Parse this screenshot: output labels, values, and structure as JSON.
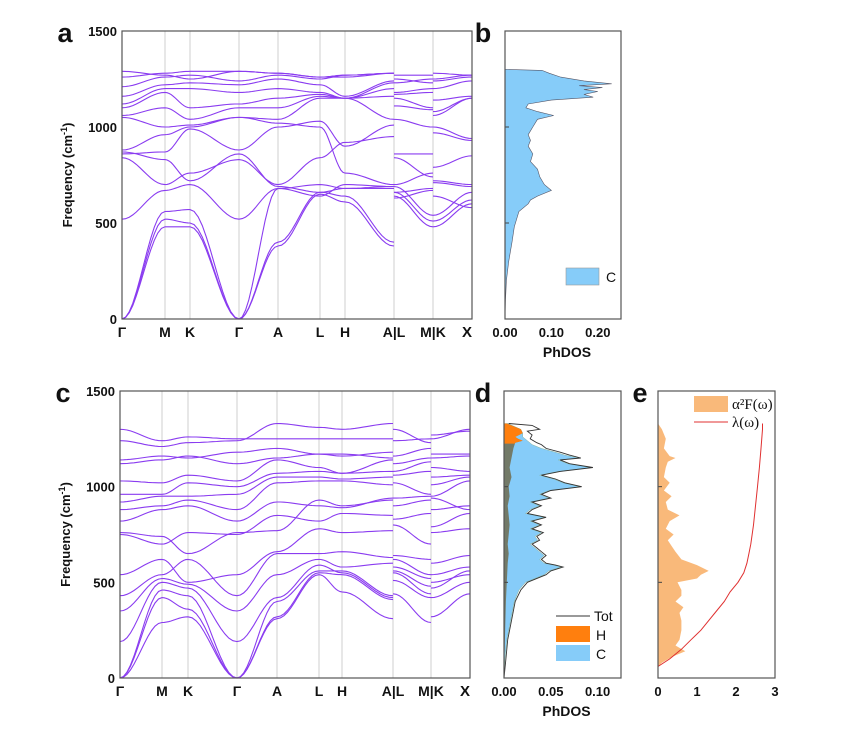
{
  "band_color": "#8a3cf0",
  "chart_data": [
    {
      "panel": "a",
      "type": "line",
      "ylabel": "Frequency (cm",
      "ylabel_sup": "-1",
      "ylabel_end": ")",
      "ylim": [
        0,
        1500
      ],
      "yticks": [
        "0",
        "500",
        "1000",
        "1500"
      ],
      "xticks": [
        "Γ",
        "M",
        "K",
        "Γ",
        "A",
        "L",
        "H",
        "A|L",
        "M|K",
        "X"
      ],
      "kpath": [
        "Γ",
        "M",
        "K",
        "Γ",
        "A",
        "L",
        "H",
        "A",
        "L",
        "M",
        "K",
        "X"
      ],
      "grid": "vertical lines at high-symmetry points",
      "bands": [
        [
          0,
          480,
          480,
          0,
          380,
          650,
          610,
          380,
          640,
          480,
          480,
          600
        ],
        [
          0,
          520,
          500,
          0,
          400,
          660,
          640,
          400,
          660,
          510,
          510,
          620
        ],
        [
          0,
          560,
          570,
          0,
          680,
          700,
          680,
          680,
          690,
          540,
          540,
          660
        ],
        [
          520,
          670,
          700,
          520,
          680,
          640,
          700,
          690,
          630,
          670,
          710,
          690
        ],
        [
          840,
          700,
          760,
          830,
          700,
          840,
          920,
          950,
          840,
          740,
          790,
          850
        ],
        [
          860,
          870,
          990,
          880,
          1000,
          1030,
          900,
          1010,
          860,
          860,
          970,
          930
        ],
        [
          880,
          960,
          1000,
          1050,
          1020,
          1000,
          760,
          700,
          700,
          760,
          720,
          700
        ],
        [
          870,
          830,
          720,
          860,
          690,
          660,
          680,
          690,
          660,
          680,
          640,
          580
        ],
        [
          1050,
          1000,
          1010,
          1050,
          1040,
          1150,
          1150,
          1040,
          1040,
          1000,
          1000,
          940
        ],
        [
          1060,
          1100,
          1040,
          1100,
          1100,
          1160,
          1150,
          1160,
          1110,
          1090,
          1060,
          1150
        ],
        [
          1100,
          1180,
          1100,
          1120,
          1150,
          1170,
          1150,
          1200,
          1150,
          1100,
          1080,
          1150
        ],
        [
          1120,
          1200,
          1200,
          1180,
          1200,
          1180,
          1150,
          1230,
          1170,
          1180,
          1140,
          1160
        ],
        [
          1160,
          1220,
          1230,
          1220,
          1250,
          1220,
          1160,
          1240,
          1180,
          1200,
          1200,
          1240
        ],
        [
          1210,
          1260,
          1270,
          1240,
          1270,
          1250,
          1270,
          1280,
          1250,
          1230,
          1240,
          1260
        ],
        [
          1260,
          1280,
          1290,
          1290,
          1280,
          1260,
          1260,
          1280,
          1270,
          1270,
          1280,
          1270
        ],
        [
          1290,
          1270,
          1250,
          1290,
          1280,
          1260,
          1270,
          1280,
          1230,
          1250,
          1250,
          1270
        ]
      ]
    },
    {
      "panel": "b",
      "type": "area",
      "xlabel": "PhDOS",
      "xlim": [
        0,
        0.25
      ],
      "ylim": [
        0,
        1500
      ],
      "xticks": [
        "0.00",
        "0.10",
        "0.20"
      ],
      "xtick_values": [
        0,
        0.1,
        0.2
      ],
      "legend": "bottom-right",
      "series": [
        {
          "name": "C",
          "color": "#86ccf9",
          "freq": [
            1300,
            1295,
            1280,
            1260,
            1240,
            1225,
            1215,
            1205,
            1195,
            1185,
            1170,
            1155,
            1140,
            1120,
            1100,
            1080,
            1060,
            1040,
            1000,
            960,
            930,
            900,
            860,
            820,
            780,
            740,
            700,
            670,
            640,
            620,
            600,
            560,
            520,
            480,
            400,
            300,
            200,
            100,
            0
          ],
          "dos": [
            0,
            0.08,
            0.095,
            0.12,
            0.17,
            0.23,
            0.16,
            0.21,
            0.17,
            0.2,
            0.17,
            0.19,
            0.1,
            0.05,
            0.045,
            0.07,
            0.105,
            0.07,
            0.06,
            0.05,
            0.055,
            0.05,
            0.06,
            0.055,
            0.07,
            0.075,
            0.085,
            0.1,
            0.07,
            0.055,
            0.05,
            0.03,
            0.025,
            0.02,
            0.015,
            0.008,
            0.003,
            0.001,
            0
          ]
        }
      ]
    },
    {
      "panel": "c",
      "type": "line",
      "ylabel": "Frequency (cm",
      "ylabel_sup": "-1",
      "ylabel_end": ")",
      "ylim": [
        0,
        1500
      ],
      "yticks": [
        "0",
        "500",
        "1000",
        "1500"
      ],
      "xticks": [
        "Γ",
        "M",
        "K",
        "Γ",
        "A",
        "L",
        "H",
        "A|L",
        "M|K",
        "X"
      ],
      "kpath": [
        "Γ",
        "M",
        "K",
        "Γ",
        "A",
        "L",
        "H",
        "A",
        "L",
        "M",
        "K",
        "X"
      ],
      "grid": "vertical lines at high-symmetry points",
      "bands": [
        [
          0,
          290,
          320,
          0,
          310,
          540,
          450,
          310,
          440,
          290,
          320,
          440
        ],
        [
          0,
          420,
          360,
          0,
          320,
          550,
          540,
          410,
          510,
          420,
          420,
          500
        ],
        [
          0,
          460,
          430,
          0,
          400,
          560,
          560,
          430,
          550,
          440,
          470,
          560
        ],
        [
          190,
          500,
          470,
          190,
          420,
          590,
          550,
          420,
          560,
          480,
          500,
          540
        ],
        [
          350,
          520,
          490,
          350,
          540,
          620,
          580,
          600,
          580,
          520,
          540,
          580
        ],
        [
          430,
          540,
          620,
          430,
          650,
          650,
          660,
          630,
          620,
          540,
          600,
          640
        ],
        [
          540,
          620,
          500,
          540,
          660,
          780,
          760,
          770,
          640,
          620,
          760,
          780
        ],
        [
          750,
          700,
          760,
          750,
          850,
          820,
          860,
          850,
          800,
          700,
          790,
          860
        ],
        [
          760,
          740,
          650,
          760,
          770,
          930,
          900,
          930,
          830,
          860,
          880,
          900
        ],
        [
          820,
          880,
          900,
          820,
          920,
          900,
          890,
          940,
          900,
          930,
          940,
          880
        ],
        [
          880,
          900,
          930,
          880,
          1020,
          1030,
          1030,
          1010,
          940,
          950,
          950,
          1030
        ],
        [
          920,
          950,
          950,
          960,
          1050,
          1050,
          1040,
          1050,
          1020,
          960,
          1010,
          1050
        ],
        [
          960,
          960,
          1020,
          1000,
          1070,
          1080,
          1070,
          1080,
          1060,
          1080,
          1050,
          1060
        ],
        [
          1030,
          1020,
          1060,
          1030,
          1140,
          1100,
          1070,
          1140,
          1080,
          1130,
          1100,
          1080
        ],
        [
          1120,
          1140,
          1160,
          1120,
          1150,
          1170,
          1170,
          1150,
          1120,
          1150,
          1150,
          1160
        ],
        [
          1140,
          1160,
          1150,
          1180,
          1200,
          1170,
          1160,
          1180,
          1160,
          1200,
          1170,
          1170
        ],
        [
          1240,
          1210,
          1230,
          1240,
          1330,
          1310,
          1300,
          1330,
          1300,
          1230,
          1250,
          1300
        ],
        [
          1300,
          1240,
          1260,
          1250,
          1250,
          1250,
          1250,
          1250,
          1240,
          1250,
          1270,
          1290
        ]
      ]
    },
    {
      "panel": "d",
      "type": "area",
      "xlabel": "PhDOS",
      "xlim": [
        0,
        0.125
      ],
      "ylim": [
        0,
        1500
      ],
      "xticks": [
        "0.00",
        "0.05",
        "0.10"
      ],
      "xtick_values": [
        0,
        0.05,
        0.1
      ],
      "legend": "bottom-right",
      "series": [
        {
          "name": "Tot",
          "color": "#333333",
          "freq": [
            1330,
            1320,
            1300,
            1290,
            1270,
            1250,
            1230,
            1220,
            1200,
            1180,
            1165,
            1150,
            1140,
            1120,
            1100,
            1080,
            1060,
            1040,
            1020,
            1000,
            980,
            960,
            940,
            920,
            900,
            880,
            860,
            840,
            820,
            800,
            780,
            760,
            740,
            720,
            700,
            680,
            660,
            640,
            620,
            600,
            590,
            580,
            560,
            540,
            500,
            460,
            400,
            300,
            200,
            100,
            0
          ],
          "dos": [
            0.005,
            0.03,
            0.038,
            0.025,
            0.03,
            0.028,
            0.035,
            0.04,
            0.045,
            0.06,
            0.07,
            0.082,
            0.06,
            0.07,
            0.095,
            0.06,
            0.04,
            0.055,
            0.065,
            0.083,
            0.05,
            0.04,
            0.05,
            0.03,
            0.04,
            0.03,
            0.025,
            0.045,
            0.03,
            0.04,
            0.03,
            0.042,
            0.035,
            0.038,
            0.03,
            0.035,
            0.04,
            0.045,
            0.04,
            0.045,
            0.055,
            0.063,
            0.05,
            0.045,
            0.025,
            0.018,
            0.012,
            0.008,
            0.004,
            0.002,
            0
          ]
        },
        {
          "name": "H",
          "color": "#ff7f0e",
          "overlap_color": "#737a68",
          "freq": [
            1330,
            1300,
            1280,
            1260,
            1250,
            1240,
            1230,
            1200,
            1150,
            1100,
            1050,
            1000,
            950,
            900,
            850,
            800,
            750,
            700,
            650,
            600,
            500,
            400,
            200,
            0
          ],
          "dos": [
            0.003,
            0.018,
            0.02,
            0.012,
            0.015,
            0.02,
            0.012,
            0.01,
            0.008,
            0.006,
            0.008,
            0.005,
            0.006,
            0.004,
            0.005,
            0.006,
            0.005,
            0.004,
            0.005,
            0.004,
            0.003,
            0.002,
            0.001,
            0
          ]
        },
        {
          "name": "C",
          "color": "#86ccf9",
          "freq": [
            1330,
            1300,
            1280,
            1260,
            1240,
            1220,
            1200,
            1180,
            1165,
            1150,
            1140,
            1120,
            1100,
            1080,
            1060,
            1040,
            1020,
            1000,
            980,
            960,
            940,
            920,
            900,
            880,
            860,
            840,
            820,
            800,
            780,
            760,
            740,
            720,
            700,
            680,
            660,
            640,
            620,
            600,
            590,
            580,
            560,
            540,
            500,
            460,
            400,
            300,
            200,
            100,
            0
          ],
          "dos": [
            0.004,
            0.018,
            0.02,
            0.02,
            0.025,
            0.03,
            0.04,
            0.055,
            0.065,
            0.08,
            0.058,
            0.068,
            0.093,
            0.058,
            0.038,
            0.053,
            0.063,
            0.081,
            0.048,
            0.038,
            0.048,
            0.028,
            0.038,
            0.028,
            0.023,
            0.043,
            0.028,
            0.038,
            0.028,
            0.04,
            0.033,
            0.036,
            0.028,
            0.033,
            0.038,
            0.043,
            0.038,
            0.043,
            0.053,
            0.061,
            0.048,
            0.043,
            0.023,
            0.016,
            0.011,
            0.007,
            0.003,
            0.001,
            0
          ]
        }
      ]
    },
    {
      "panel": "e",
      "type": "area",
      "xlim": [
        0,
        3
      ],
      "ylim": [
        0,
        1500
      ],
      "xticks": [
        "0",
        "1",
        "2",
        "3"
      ],
      "xtick_values": [
        0,
        1,
        2,
        3
      ],
      "legend": "top-right",
      "series": [
        {
          "name": "α²F(ω)",
          "color": "#f9b97a",
          "freq": [
            1330,
            1300,
            1250,
            1200,
            1160,
            1150,
            1130,
            1100,
            1050,
            1020,
            980,
            950,
            920,
            880,
            850,
            820,
            780,
            750,
            720,
            690,
            660,
            620,
            590,
            560,
            540,
            520,
            500,
            460,
            430,
            400,
            370,
            340,
            300,
            250,
            200,
            170,
            140,
            110,
            80,
            60
          ],
          "value": [
            0,
            0.1,
            0.2,
            0.15,
            0.3,
            0.45,
            0.25,
            0.2,
            0.15,
            0.3,
            0.15,
            0.35,
            0.2,
            0.25,
            0.55,
            0.3,
            0.2,
            0.4,
            0.25,
            0.35,
            0.45,
            0.6,
            1.0,
            1.3,
            1.1,
            1.0,
            0.5,
            0.6,
            0.6,
            0.45,
            0.65,
            0.55,
            0.6,
            0.6,
            0.55,
            0.45,
            0.7,
            0.35,
            0.1,
            0
          ]
        },
        {
          "name": "λ(ω)",
          "color": "#e03030",
          "freq": [
            60,
            100,
            150,
            200,
            250,
            300,
            350,
            400,
            450,
            500,
            550,
            600,
            650,
            700,
            800,
            900,
            1000,
            1100,
            1200,
            1300,
            1330
          ],
          "value": [
            0,
            0.3,
            0.6,
            0.85,
            1.1,
            1.3,
            1.5,
            1.7,
            1.85,
            2.05,
            2.2,
            2.28,
            2.33,
            2.38,
            2.45,
            2.5,
            2.55,
            2.6,
            2.64,
            2.68,
            2.68
          ]
        }
      ]
    }
  ]
}
